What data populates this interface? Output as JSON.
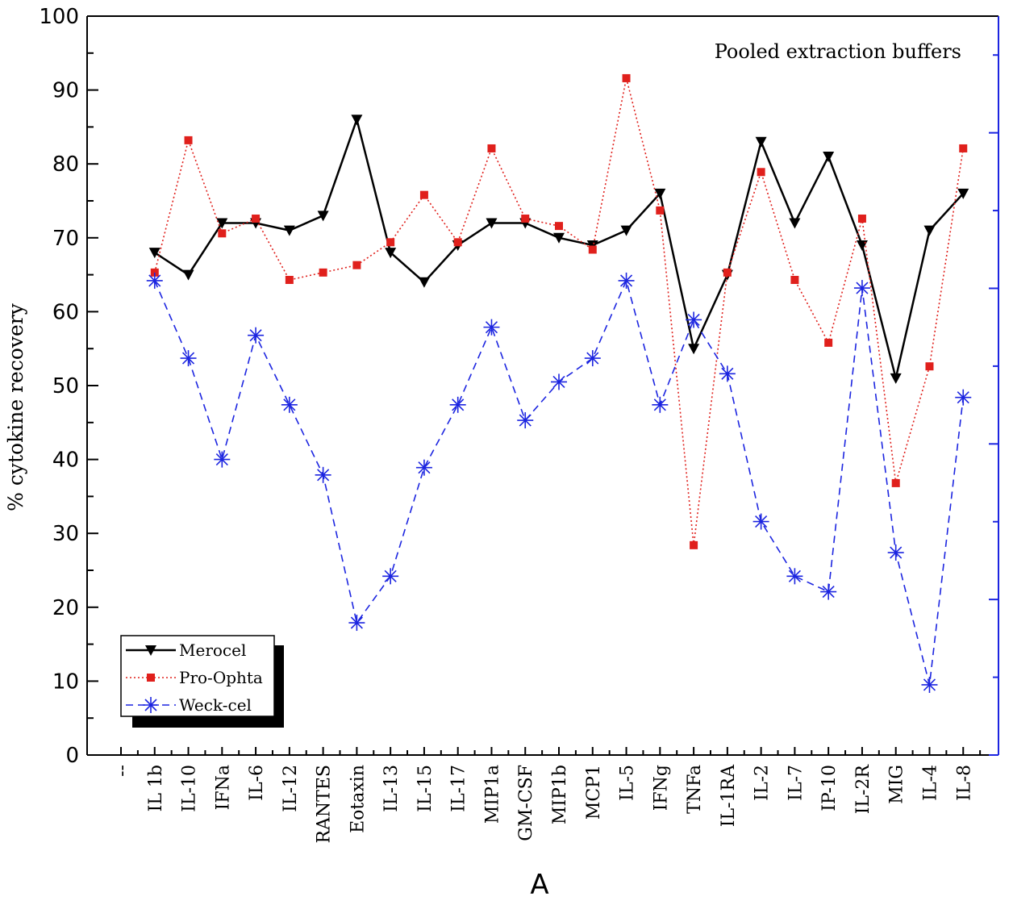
{
  "chart_data": {
    "type": "line",
    "title": "Pooled extraction buffers",
    "xlabel": "A",
    "ylabel": "% cytokine recovery",
    "ylim": [
      0,
      100
    ],
    "yticks": [
      "0",
      "10",
      "20",
      "30",
      "40",
      "50",
      "60",
      "70",
      "80",
      "90",
      "100"
    ],
    "legend_position": "bottom-left",
    "first_tick_label": "--",
    "categories": [
      "IL 1b",
      "IL-10",
      "IFNa",
      "IL-6",
      "IL-12",
      "RANTES",
      "Eotaxin",
      "IL-13",
      "IL-15",
      "IL-17",
      "MIP1a",
      "GM-CSF",
      "MIP1b",
      "MCP1",
      "IL-5",
      "IFNg",
      "TNFa",
      "IL-1RA",
      "IL-2",
      "IL-7",
      "IP-10",
      "IL-2R",
      "MIG",
      "IL-4",
      "IL-8"
    ],
    "series": [
      {
        "name": "Merocel",
        "color": "#000000",
        "marker": "down-triangle",
        "line": "solid",
        "values": [
          68,
          65,
          72,
          72,
          71,
          73,
          86,
          68,
          64,
          69,
          72,
          72,
          70,
          69,
          71,
          76,
          55,
          65,
          83,
          72,
          81,
          69,
          51,
          71,
          76
        ]
      },
      {
        "name": "Pro-Ophta",
        "color": "#e0201c",
        "marker": "square",
        "line": "dotted",
        "values": [
          65.3,
          83.2,
          70.6,
          72.6,
          64.3,
          65.3,
          66.3,
          69.4,
          75.8,
          69.4,
          82.1,
          72.6,
          71.6,
          68.4,
          91.6,
          73.7,
          28.4,
          65.3,
          78.9,
          64.3,
          55.8,
          72.6,
          36.8,
          52.6,
          82.1
        ]
      },
      {
        "name": "Weck-cel",
        "color": "#1c25e0",
        "marker": "asterisk",
        "line": "dashed",
        "values": [
          64.2,
          53.7,
          40,
          56.8,
          47.4,
          37.9,
          17.9,
          24.2,
          38.9,
          47.4,
          57.9,
          45.3,
          50.5,
          53.7,
          64.2,
          47.4,
          58.9,
          51.6,
          31.6,
          24.2,
          22.1,
          63.2,
          27.4,
          9.5,
          48.4
        ]
      }
    ]
  },
  "colors": {
    "right_axis": "#1c25e0",
    "axis": "#000000"
  }
}
